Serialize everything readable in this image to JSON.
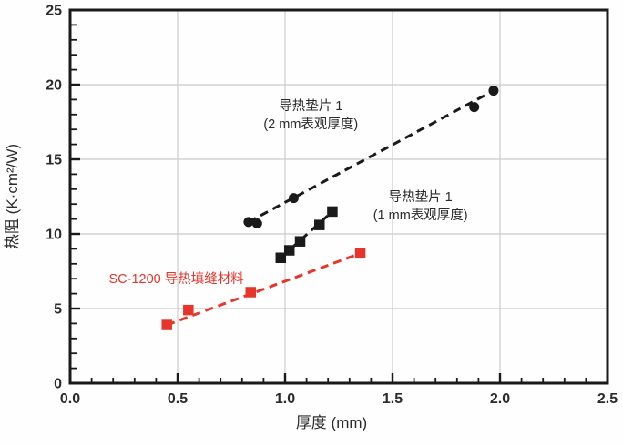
{
  "chart_data": {
    "type": "scatter",
    "title": "",
    "xlabel": "厚度 (mm)",
    "ylabel": "热阻 (K·cm²/W)",
    "xlim": [
      0.0,
      2.5
    ],
    "ylim": [
      0,
      25
    ],
    "x_major_ticks": [
      0.0,
      0.5,
      1.0,
      1.5,
      2.0,
      2.5
    ],
    "x_tick_labels": [
      "0.0",
      "0.5",
      "1.0",
      "1.5",
      "2.0",
      "2.5"
    ],
    "x_minor_step": 0.1,
    "y_major_ticks": [
      0,
      5,
      10,
      15,
      20,
      25
    ],
    "y_tick_labels": [
      "0",
      "5",
      "10",
      "15",
      "20",
      "25"
    ],
    "y_minor_step": 1,
    "grid": "on",
    "grid_color": "#cbcbcb",
    "frame_color": "#1a1a1a",
    "legend_position": "annotations-inside-plot",
    "series": [
      {
        "name": "导热垫片 1 (2 mm表观厚度)",
        "marker": "circle",
        "line_style": "dashed",
        "color": "#1a1a1a",
        "points": [
          [
            0.83,
            10.8
          ],
          [
            0.87,
            10.7
          ],
          [
            1.04,
            12.4
          ],
          [
            1.88,
            18.5
          ],
          [
            1.97,
            19.6
          ]
        ]
      },
      {
        "name": "导热垫片 1 (1 mm表观厚度)",
        "marker": "square",
        "line_style": "dashed",
        "color": "#1a1a1a",
        "points": [
          [
            0.98,
            8.4
          ],
          [
            1.02,
            8.9
          ],
          [
            1.07,
            9.5
          ],
          [
            1.16,
            10.6
          ],
          [
            1.22,
            11.5
          ]
        ]
      },
      {
        "name": "SC-1200 导热填缝材料",
        "marker": "square",
        "line_style": "dashed",
        "color": "#e8352b",
        "points": [
          [
            0.45,
            3.9
          ],
          [
            0.55,
            4.9
          ],
          [
            0.84,
            6.1
          ],
          [
            1.35,
            8.7
          ]
        ]
      }
    ],
    "annotations": [
      {
        "lines": [
          "导热垫片 1",
          "(2 mm表观厚度)"
        ],
        "x": 1.12,
        "y": 18.3,
        "anchor": "middle",
        "color": "#2b2b2b"
      },
      {
        "lines": [
          "导热垫片 1",
          "(1 mm表观厚度)"
        ],
        "x": 1.63,
        "y": 12.2,
        "anchor": "middle",
        "color": "#2b2b2b"
      },
      {
        "lines": [
          "SC-1200 导热填缝材料"
        ],
        "x": 0.18,
        "y": 6.7,
        "anchor": "start",
        "color": "#e8352b"
      }
    ]
  }
}
